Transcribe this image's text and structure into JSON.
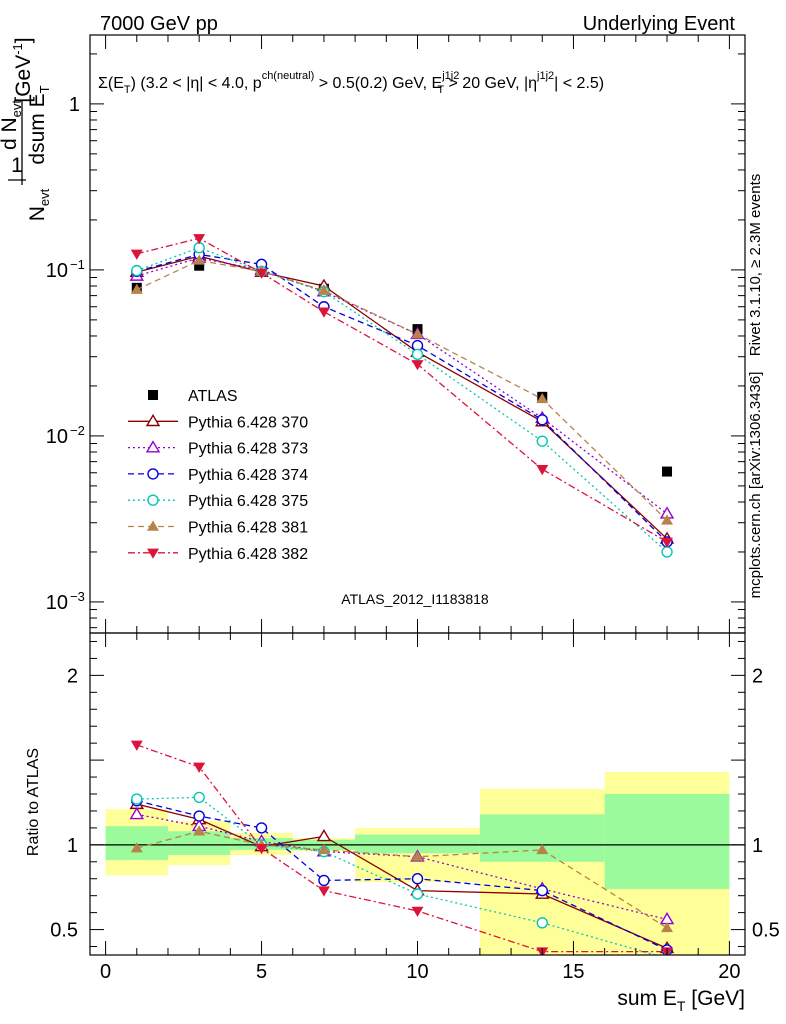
{
  "header": {
    "left": "7000 GeV pp",
    "right": "Underlying Event"
  },
  "side_labels": {
    "rivet": "Rivet 3.1.10, ≥ 2.3M events",
    "mcplots": "mcplots.cern.ch [arXiv:1306.3436]"
  },
  "analysis_tag": "ATLAS_2012_I1183818",
  "colors": {
    "ATLAS": "#000000",
    "370": "#8b0000",
    "373": "#9400d3",
    "374": "#0000dd",
    "375": "#00c8b4",
    "381": "#b8834a",
    "382": "#dc143c",
    "band_green": "#9bfa9b",
    "band_yellow": "#ffff99"
  },
  "chart_data": [
    {
      "type": "scatter",
      "panel": "main",
      "title": "Σ(E_T) (3.2 < |η| < 4.0, p^ch(neutral) > 0.5(0.2) GeV, E_T^j1j2 > 20 GeV, |η^j1j2| < 2.5)",
      "ylabel": "1/N_evt dN_evt/dsum E_T [GeV^-1]",
      "yscale": "log",
      "xlim": [
        -0.5,
        20.5
      ],
      "ylim": [
        0.00065,
        2.6
      ],
      "x": [
        1,
        3,
        5,
        7,
        10,
        14,
        18
      ],
      "bins": [
        [
          0,
          2
        ],
        [
          2,
          4
        ],
        [
          4,
          6
        ],
        [
          6,
          8
        ],
        [
          8,
          12
        ],
        [
          12,
          16
        ],
        [
          16,
          20
        ]
      ],
      "legend_position": "left",
      "series": [
        {
          "name": "ATLAS",
          "key": "ATLAS",
          "marker": "square-filled",
          "line": "none",
          "values": [
            0.078,
            0.106,
            0.098,
            0.077,
            0.044,
            0.0172,
            0.0061
          ]
        },
        {
          "name": "Pythia 6.428 370",
          "key": "370",
          "marker": "triangle-up-open",
          "line": "solid",
          "values": [
            0.097,
            0.121,
            0.097,
            0.08,
            0.032,
            0.0122,
            0.0024
          ]
        },
        {
          "name": "Pythia 6.428 373",
          "key": "373",
          "marker": "triangle-up-open",
          "line": "dotted",
          "values": [
            0.092,
            0.118,
            0.1,
            0.074,
            0.041,
            0.0128,
            0.0034
          ]
        },
        {
          "name": "Pythia 6.428 374",
          "key": "374",
          "marker": "circle-open",
          "line": "dashed",
          "values": [
            0.098,
            0.124,
            0.108,
            0.06,
            0.035,
            0.0125,
            0.0023
          ]
        },
        {
          "name": "Pythia 6.428 375",
          "key": "375",
          "marker": "circle-open",
          "line": "dotted",
          "values": [
            0.099,
            0.136,
            0.098,
            0.074,
            0.031,
            0.0093,
            0.002
          ]
        },
        {
          "name": "Pythia 6.428 381",
          "key": "381",
          "marker": "triangle-up-filled",
          "line": "dashed",
          "values": [
            0.076,
            0.114,
            0.098,
            0.075,
            0.041,
            0.0167,
            0.0031
          ]
        },
        {
          "name": "Pythia 6.428 382",
          "key": "382",
          "marker": "triangle-down-filled",
          "line": "dashdot",
          "values": [
            0.125,
            0.155,
            0.096,
            0.056,
            0.027,
            0.0063,
            0.0023
          ]
        }
      ],
      "y_ticks": [
        "10^-3",
        "10^-2",
        "10^-1",
        "1"
      ]
    },
    {
      "type": "scatter",
      "panel": "ratio",
      "ylabel": "Ratio to ATLAS",
      "xlabel": "sum E_T [GeV]",
      "xlim": [
        -0.5,
        20.5
      ],
      "ylim": [
        0.35,
        2.25
      ],
      "reference_line": 1,
      "x": [
        1,
        3,
        5,
        7,
        10,
        14,
        18
      ],
      "bins": [
        [
          0,
          2
        ],
        [
          2,
          4
        ],
        [
          4,
          6
        ],
        [
          6,
          8
        ],
        [
          8,
          12
        ],
        [
          12,
          16
        ],
        [
          16,
          20
        ]
      ],
      "bands": {
        "green": [
          [
            0.91,
            1.11
          ],
          [
            0.94,
            1.08
          ],
          [
            0.97,
            1.04
          ],
          [
            0.97,
            1.03
          ],
          [
            0.95,
            1.06
          ],
          [
            0.9,
            1.18
          ],
          [
            0.74,
            1.3
          ]
        ],
        "yellow": [
          [
            0.82,
            1.21
          ],
          [
            0.88,
            1.14
          ],
          [
            0.94,
            1.07
          ],
          [
            0.96,
            1.04
          ],
          [
            0.78,
            1.1
          ],
          [
            0.35,
            1.33
          ],
          [
            0.35,
            1.43
          ]
        ]
      },
      "series": [
        {
          "key": "370",
          "values": [
            1.24,
            1.15,
            0.99,
            1.05,
            0.73,
            0.71,
            0.39
          ]
        },
        {
          "key": "373",
          "values": [
            1.18,
            1.11,
            1.02,
            0.96,
            0.93,
            0.74,
            0.56
          ]
        },
        {
          "key": "374",
          "values": [
            1.26,
            1.17,
            1.1,
            0.79,
            0.8,
            0.73,
            0.38
          ]
        },
        {
          "key": "375",
          "values": [
            1.27,
            1.28,
            1.0,
            0.96,
            0.71,
            0.54,
            0.33
          ]
        },
        {
          "key": "381",
          "values": [
            0.98,
            1.08,
            1.0,
            0.97,
            0.93,
            0.97,
            0.51
          ]
        },
        {
          "key": "382",
          "values": [
            1.59,
            1.46,
            0.98,
            0.73,
            0.61,
            0.37,
            0.37
          ]
        }
      ],
      "y_ticks": [
        "0.5",
        "1",
        "2"
      ],
      "x_ticks": [
        "0",
        "5",
        "10",
        "15",
        "20"
      ]
    }
  ]
}
